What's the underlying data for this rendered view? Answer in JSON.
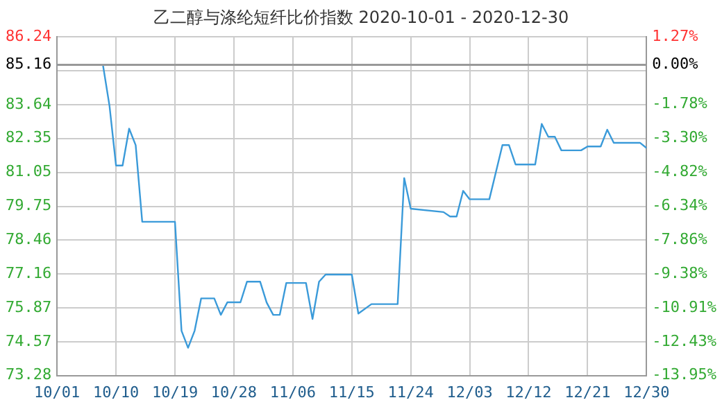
{
  "chart_data": {
    "type": "line",
    "title": "乙二醇与涤纶短纤比价指数 2020-10-01 - 2020-12-30",
    "x": [
      "2020-10-01",
      "2020-10-08",
      "2020-10-09",
      "2020-10-10",
      "2020-10-11",
      "2020-10-12",
      "2020-10-13",
      "2020-10-14",
      "2020-10-19",
      "2020-10-20",
      "2020-10-21",
      "2020-10-22",
      "2020-10-23",
      "2020-10-25",
      "2020-10-26",
      "2020-10-27",
      "2020-10-29",
      "2020-10-30",
      "2020-11-01",
      "2020-11-02",
      "2020-11-03",
      "2020-11-04",
      "2020-11-05",
      "2020-11-08",
      "2020-11-09",
      "2020-11-10",
      "2020-11-11",
      "2020-11-15",
      "2020-11-16",
      "2020-11-18",
      "2020-11-22",
      "2020-11-23",
      "2020-11-24",
      "2020-11-29",
      "2020-11-30",
      "2020-12-01",
      "2020-12-02",
      "2020-12-03",
      "2020-12-06",
      "2020-12-08",
      "2020-12-09",
      "2020-12-10",
      "2020-12-13",
      "2020-12-14",
      "2020-12-15",
      "2020-12-16",
      "2020-12-17",
      "2020-12-20",
      "2020-12-21",
      "2020-12-23",
      "2020-12-24",
      "2020-12-25",
      "2020-12-29",
      "2020-12-30"
    ],
    "series": [
      {
        "color": "#3a9ad9",
        "values": [
          85.16,
          85.16,
          83.6,
          81.31,
          81.31,
          82.72,
          82.09,
          79.16,
          79.16,
          74.99,
          74.34,
          74.99,
          76.23,
          76.23,
          75.6,
          76.08,
          76.08,
          76.87,
          76.87,
          76.07,
          75.6,
          75.6,
          76.82,
          76.82,
          75.44,
          76.87,
          77.14,
          77.14,
          75.65,
          76.01,
          76.01,
          80.83,
          79.66,
          79.53,
          79.36,
          79.36,
          80.34,
          80.02,
          80.02,
          82.09,
          82.09,
          81.35,
          81.35,
          82.9,
          82.41,
          82.41,
          81.89,
          81.89,
          82.04,
          82.04,
          82.68,
          82.18,
          82.18,
          81.98
        ]
      }
    ],
    "xlim": [
      "2020-10-01",
      "2020-12-30"
    ],
    "xticks": [
      {
        "value": "2020-10-01",
        "label": "10/01"
      },
      {
        "value": "2020-10-10",
        "label": "10/10"
      },
      {
        "value": "2020-10-19",
        "label": "10/19"
      },
      {
        "value": "2020-10-28",
        "label": "10/28"
      },
      {
        "value": "2020-11-06",
        "label": "11/06"
      },
      {
        "value": "2020-11-15",
        "label": "11/15"
      },
      {
        "value": "2020-11-24",
        "label": "11/24"
      },
      {
        "value": "2020-12-03",
        "label": "12/03"
      },
      {
        "value": "2020-12-12",
        "label": "12/12"
      },
      {
        "value": "2020-12-21",
        "label": "12/21"
      },
      {
        "value": "2020-12-30",
        "label": "12/30"
      }
    ],
    "ylim": [
      73.28,
      86.24
    ],
    "yticks": [
      73.28,
      74.57,
      75.87,
      77.16,
      78.46,
      79.75,
      81.05,
      82.35,
      83.64,
      {
        "value": 84.94,
        "label": null
      },
      85.16,
      86.24
    ],
    "y2lim": [
      -13.95,
      1.27
    ],
    "y2ticks": [
      {
        "value": -13.95,
        "label": "-13.95%"
      },
      {
        "value": -12.43,
        "label": "-12.43%"
      },
      {
        "value": -10.91,
        "label": "-10.91%"
      },
      {
        "value": -9.38,
        "label": "-9.38%"
      },
      {
        "value": -7.86,
        "label": "-7.86%"
      },
      {
        "value": -6.34,
        "label": "-6.34%"
      },
      {
        "value": -4.82,
        "label": "-4.82%"
      },
      {
        "value": -3.3,
        "label": "-3.30%"
      },
      {
        "value": -1.78,
        "label": "-1.78%"
      },
      {
        "value": 0,
        "label": "0.00%"
      },
      {
        "value": 1.27,
        "label": "1.27%"
      }
    ],
    "ref_lines": [
      {
        "axis": "y",
        "value": 85.16,
        "color": "#999999"
      }
    ],
    "grid": true,
    "legend": false,
    "marker": "none",
    "line_style": "solid"
  }
}
